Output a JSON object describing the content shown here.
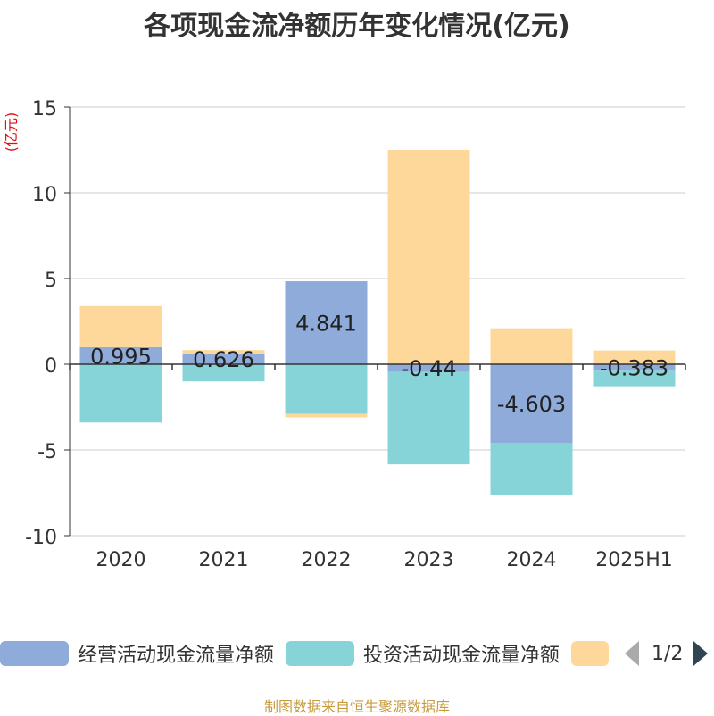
{
  "title": "各项现金流净额历年变化情况(亿元)",
  "source": "制图数据来自恒生聚源数据库",
  "legend": {
    "items": [
      {
        "label": "经营活动现金流量净额",
        "color": "#8eabd9"
      },
      {
        "label": "投资活动现金流量净额",
        "color": "#87d4d8"
      },
      {
        "label": "",
        "color": "#fdd89a"
      }
    ],
    "pager": "1/2"
  },
  "chart_data": {
    "type": "bar",
    "stacked": true,
    "ylabel": "(亿元)",
    "ylim": [
      -10,
      15
    ],
    "yticks": [
      15,
      10,
      5,
      0,
      -5,
      -10
    ],
    "categories": [
      "2020",
      "2021",
      "2022",
      "2023",
      "2024",
      "2025H1"
    ],
    "grid": true,
    "legend_position": "bottom",
    "series": [
      {
        "name": "经营活动现金流量净额",
        "color": "#8eabd9",
        "values": [
          0.995,
          0.626,
          4.841,
          -0.44,
          -4.603,
          -0.383
        ],
        "labels": [
          "0.995",
          "0.626",
          "4.841",
          "-0.44",
          "-4.603",
          "-0.383"
        ]
      },
      {
        "name": "投资活动现金流量净额",
        "color": "#87d4d8",
        "values": [
          -3.4,
          -1.0,
          -2.9,
          -5.4,
          -3.0,
          -0.9
        ]
      },
      {
        "color": "#fdd89a",
        "values": [
          2.4,
          0.2,
          -0.2,
          12.5,
          2.1,
          0.8
        ]
      }
    ]
  }
}
